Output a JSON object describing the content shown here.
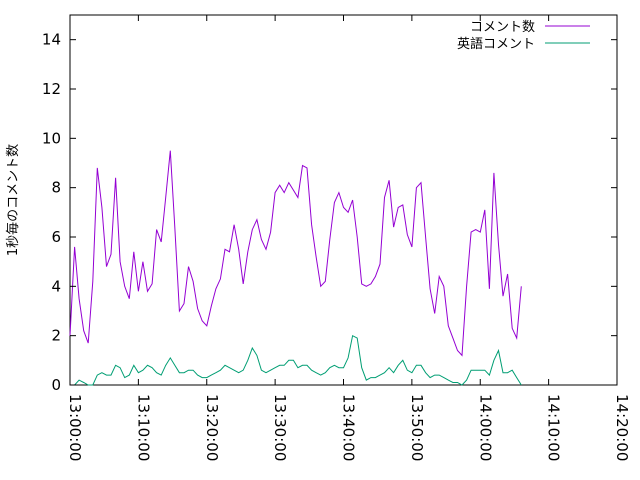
{
  "chart_data": {
    "type": "line",
    "title": "",
    "xlabel": "",
    "ylabel": "1秒毎のコメント数",
    "ylim": [
      0,
      15
    ],
    "xlim": [
      "13:00:00",
      "14:20:00"
    ],
    "yticks": [
      "0",
      "2",
      "4",
      "6",
      "8",
      "10",
      "12",
      "14"
    ],
    "xticks": [
      "13:00:00",
      "13:10:00",
      "13:20:00",
      "13:30:00",
      "13:40:00",
      "13:50:00",
      "14:00:00",
      "14:10:00",
      "14:20:00"
    ],
    "grid": false,
    "legend_position": "top-right",
    "x_step": "00:00:40",
    "series": [
      {
        "name": "コメント数",
        "color": "#9400d3",
        "values": [
          2.0,
          5.6,
          3.5,
          2.2,
          1.7,
          4.2,
          8.8,
          7.2,
          4.8,
          5.3,
          8.4,
          5.0,
          4.0,
          3.5,
          5.4,
          3.8,
          5.0,
          3.8,
          4.1,
          6.3,
          5.8,
          7.6,
          9.5,
          6.4,
          3.0,
          3.3,
          4.8,
          4.2,
          3.1,
          2.6,
          2.4,
          3.2,
          3.9,
          4.3,
          5.5,
          5.4,
          6.5,
          5.5,
          4.1,
          5.4,
          6.3,
          6.7,
          5.9,
          5.5,
          6.2,
          7.8,
          8.1,
          7.8,
          8.2,
          7.9,
          7.6,
          8.9,
          8.8,
          6.5,
          5.2,
          4.0,
          4.2,
          5.9,
          7.4,
          7.8,
          7.2,
          7.0,
          7.5,
          6.0,
          4.1,
          4.0,
          4.1,
          4.4,
          4.9,
          7.6,
          8.3,
          6.4,
          7.2,
          7.3,
          6.1,
          5.6,
          8.0,
          8.2,
          6.0,
          3.9,
          2.9,
          4.4,
          4.0,
          2.4,
          1.9,
          1.4,
          1.2,
          4.0,
          6.2,
          6.3,
          6.2,
          7.1,
          3.9,
          8.6,
          5.7,
          3.6,
          4.5,
          2.3,
          1.9,
          4.0
        ]
      },
      {
        "name": "英語コメント",
        "color": "#009e73",
        "values": [
          0.0,
          0.0,
          0.2,
          0.1,
          0.0,
          0.0,
          0.4,
          0.5,
          0.4,
          0.4,
          0.8,
          0.7,
          0.3,
          0.4,
          0.8,
          0.5,
          0.6,
          0.8,
          0.7,
          0.5,
          0.4,
          0.8,
          1.1,
          0.8,
          0.5,
          0.5,
          0.6,
          0.6,
          0.4,
          0.3,
          0.3,
          0.4,
          0.5,
          0.6,
          0.8,
          0.7,
          0.6,
          0.5,
          0.6,
          1.0,
          1.5,
          1.2,
          0.6,
          0.5,
          0.6,
          0.7,
          0.8,
          0.8,
          1.0,
          1.0,
          0.7,
          0.8,
          0.8,
          0.6,
          0.5,
          0.4,
          0.5,
          0.7,
          0.8,
          0.7,
          0.7,
          1.1,
          2.0,
          1.9,
          0.7,
          0.2,
          0.3,
          0.3,
          0.4,
          0.5,
          0.7,
          0.5,
          0.8,
          1.0,
          0.6,
          0.5,
          0.8,
          0.8,
          0.5,
          0.3,
          0.4,
          0.4,
          0.3,
          0.2,
          0.1,
          0.1,
          0.0,
          0.2,
          0.6,
          0.6,
          0.6,
          0.6,
          0.4,
          1.0,
          1.4,
          0.5,
          0.5,
          0.6,
          0.3,
          0.0
        ]
      }
    ]
  }
}
